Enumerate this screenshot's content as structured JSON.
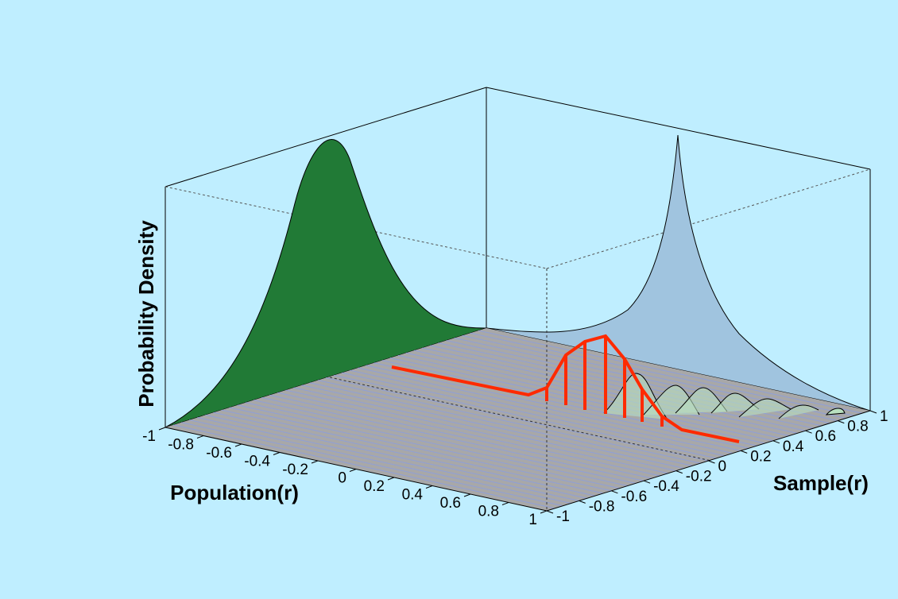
{
  "chart_data": {
    "type": "surface3d",
    "zlabel": "Probability Density",
    "xlabel": "Population(r)",
    "ylabel": "Sample(r)",
    "xlim": [
      -1,
      1
    ],
    "xticks": [
      -1,
      -0.8,
      -0.6,
      -0.4,
      -0.2,
      0,
      0.2,
      0.4,
      0.6,
      0.8,
      1
    ],
    "ylim": [
      -1,
      1
    ],
    "yticks": [
      -1,
      -0.8,
      -0.6,
      -0.4,
      -0.2,
      0,
      0.2,
      0.4,
      0.6,
      0.8,
      1
    ]
  }
}
